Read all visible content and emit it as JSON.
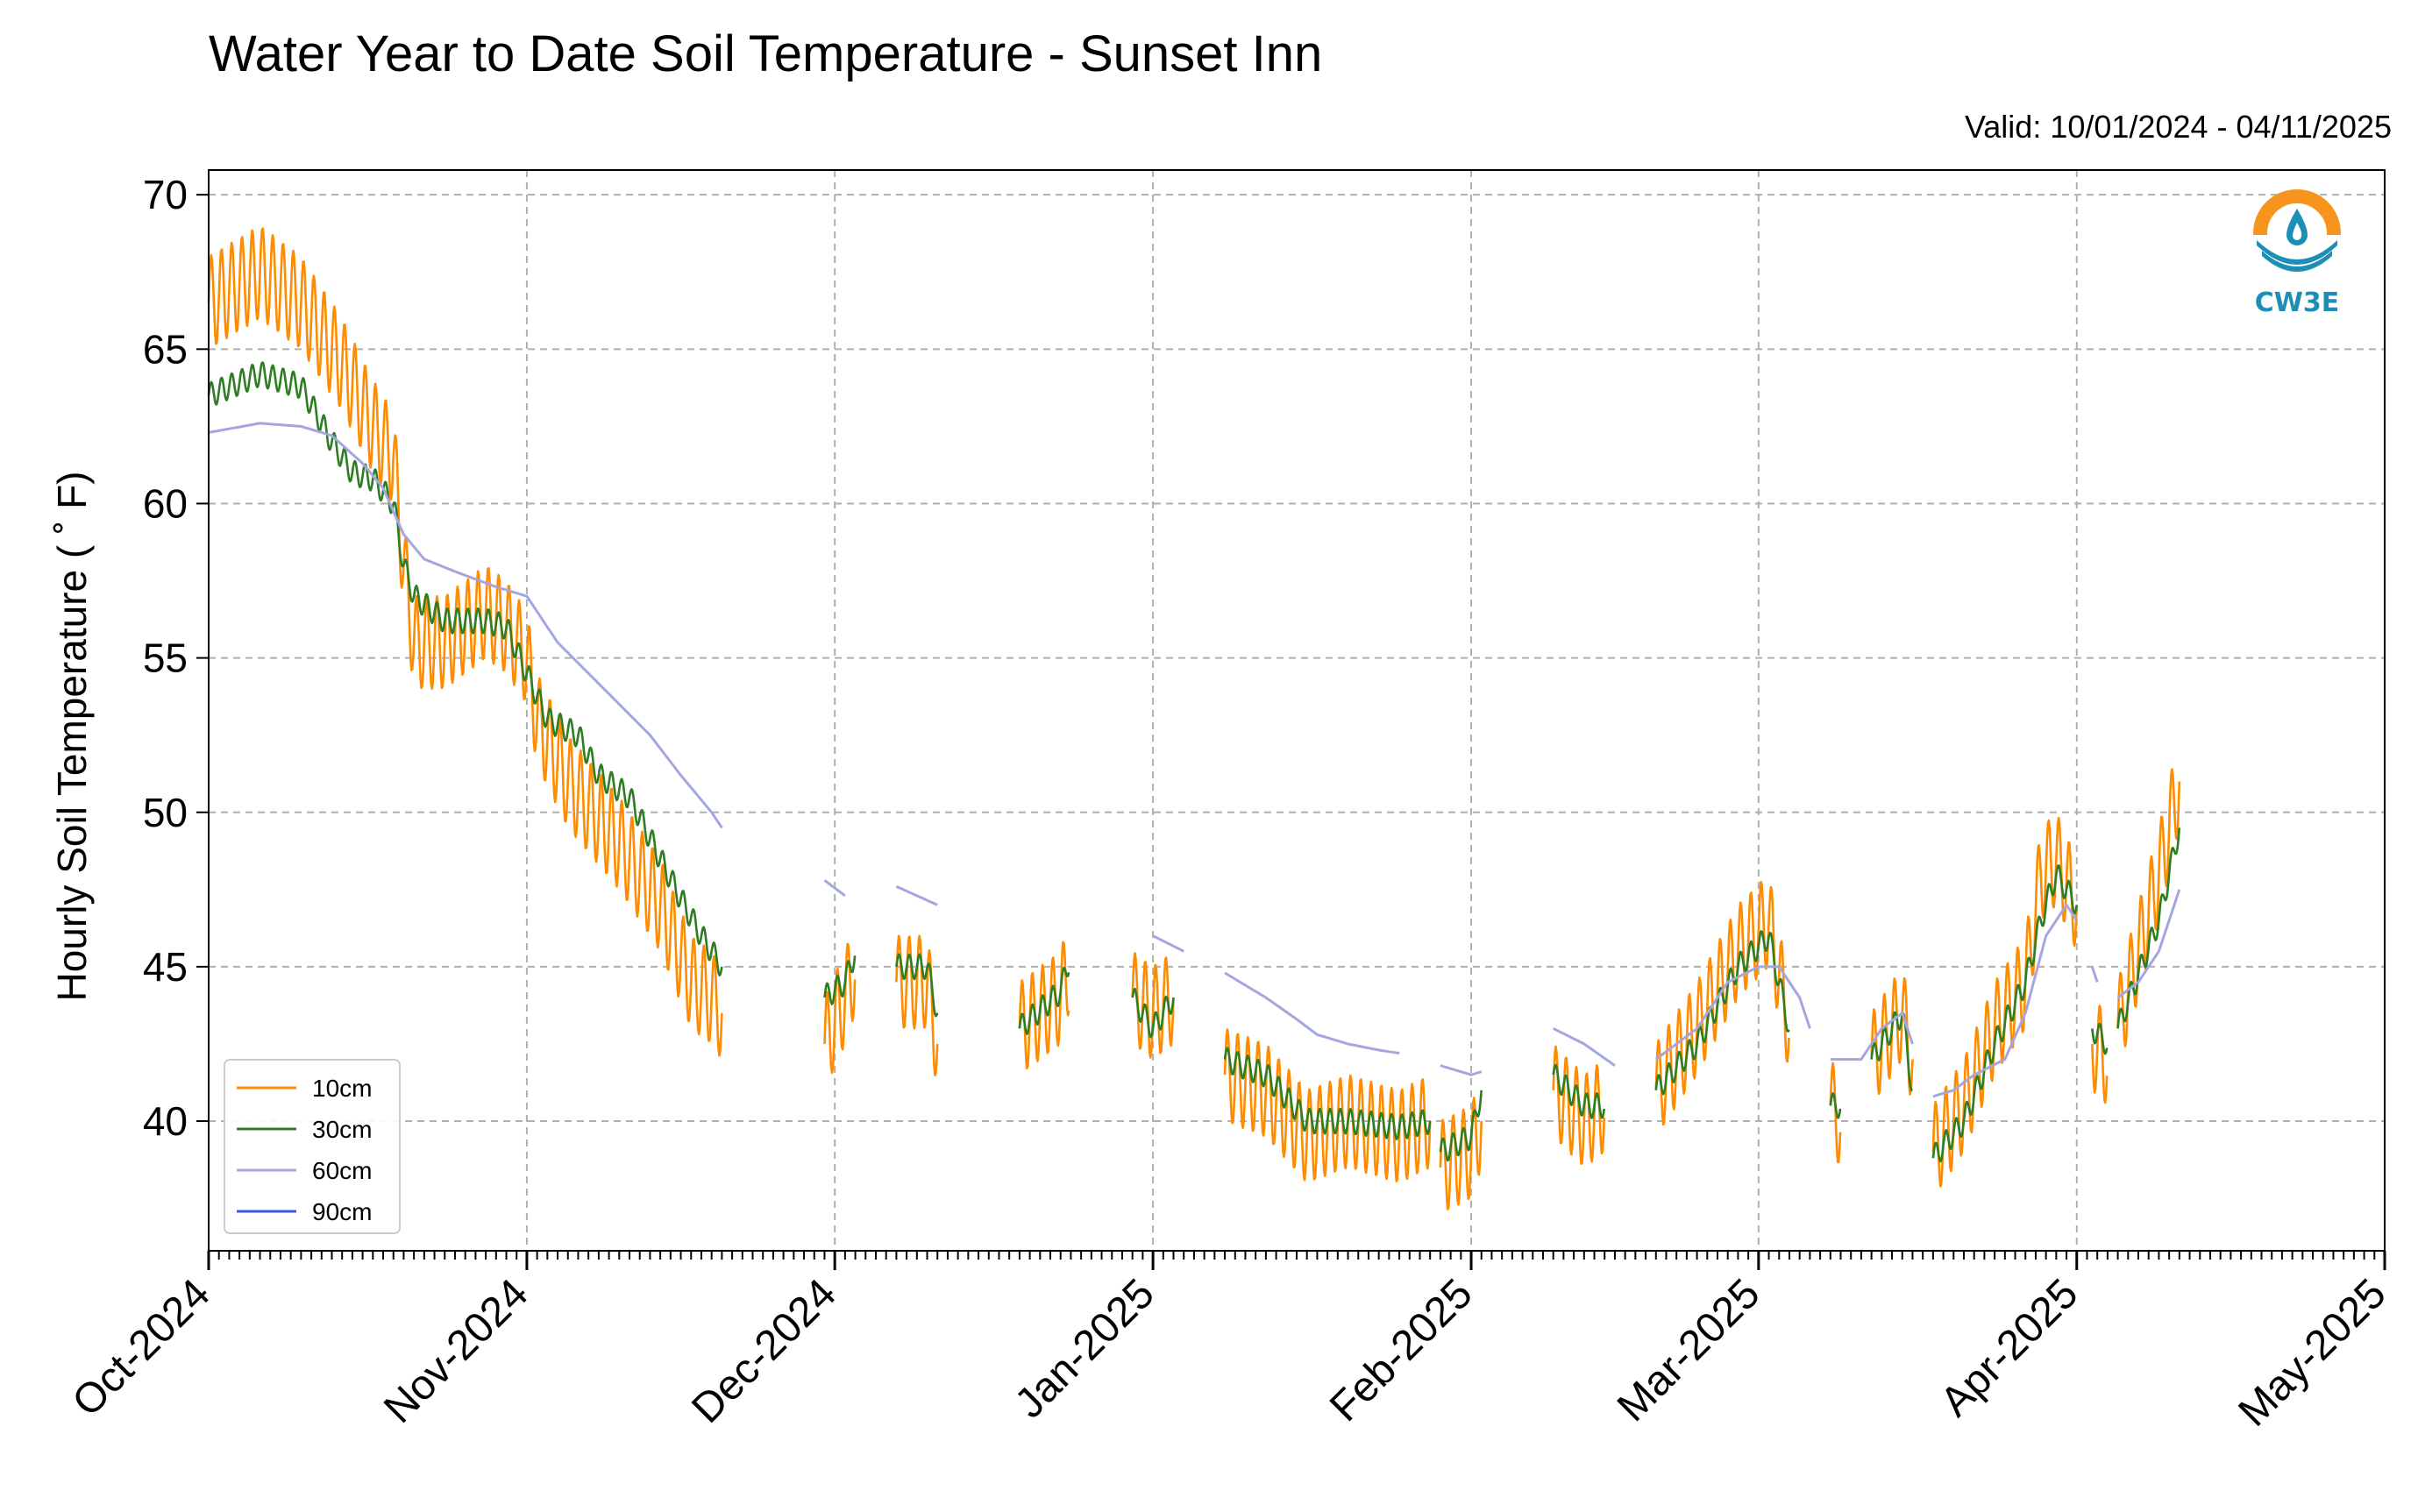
{
  "chart_data": {
    "type": "line",
    "title": "Water Year to Date Soil Temperature - Sunset Inn",
    "subtitle": "Valid: 10/01/2024 - 04/11/2025",
    "ylabel": "Hourly Soil Temperature ( ˚ F)",
    "xlabel": "",
    "ylim": [
      35.8,
      70.8
    ],
    "xlim_days": [
      0,
      212
    ],
    "yticks": [
      40,
      45,
      50,
      55,
      60,
      65,
      70
    ],
    "xticks": [
      {
        "label": "Oct-2024",
        "day": 0
      },
      {
        "label": "Nov-2024",
        "day": 31
      },
      {
        "label": "Dec-2024",
        "day": 61
      },
      {
        "label": "Jan-2025",
        "day": 92
      },
      {
        "label": "Feb-2025",
        "day": 123
      },
      {
        "label": "Mar-2025",
        "day": 151
      },
      {
        "label": "Apr-2025",
        "day": 182
      },
      {
        "label": "May-2025",
        "day": 212
      }
    ],
    "grid": true,
    "legend_position": "lower-left",
    "series": [
      {
        "name": "10cm",
        "color": "#ff8c00",
        "swing": 3.0,
        "segments": [
          [
            [
              0,
              66.5
            ],
            [
              5,
              67.5
            ],
            [
              9,
              66.5
            ],
            [
              13,
              64.5
            ],
            [
              16,
              62.5
            ],
            [
              18,
              61.5
            ],
            [
              19,
              58
            ],
            [
              20,
              55.5
            ],
            [
              23,
              55.5
            ],
            [
              27,
              56.5
            ],
            [
              29,
              56
            ],
            [
              31,
              55
            ],
            [
              32,
              53
            ],
            [
              35,
              51
            ],
            [
              40,
              49
            ],
            [
              44,
              47
            ],
            [
              47,
              44.5
            ],
            [
              49,
              44
            ],
            [
              50,
              43.5
            ]
          ],
          [
            [
              60,
              42.5
            ],
            [
              62,
              44
            ],
            [
              63,
              45
            ]
          ],
          [
            [
              67,
              44.5
            ],
            [
              70,
              44.5
            ],
            [
              71,
              42.5
            ]
          ],
          [
            [
              79,
              43
            ],
            [
              83,
              44
            ],
            [
              83.8,
              45
            ]
          ],
          [
            [
              90,
              44
            ],
            [
              92,
              43.5
            ],
            [
              94,
              44
            ]
          ],
          [
            [
              99,
              41.5
            ],
            [
              103,
              41
            ],
            [
              107,
              39.5
            ],
            [
              111,
              40
            ],
            [
              116,
              39.5
            ],
            [
              119,
              40
            ]
          ],
          [
            [
              120,
              38.5
            ],
            [
              123,
              39
            ],
            [
              124,
              40
            ]
          ],
          [
            [
              131,
              41
            ],
            [
              134,
              40
            ],
            [
              136,
              40.5
            ]
          ],
          [
            [
              141,
              41
            ],
            [
              145,
              43
            ],
            [
              149,
              45.5
            ],
            [
              152,
              46.5
            ],
            [
              154,
              43
            ]
          ],
          [
            [
              158,
              40.5
            ],
            [
              159,
              40
            ]
          ],
          [
            [
              162,
              42
            ],
            [
              165,
              43.5
            ],
            [
              166,
              42
            ]
          ],
          [
            [
              168,
              39
            ],
            [
              171,
              40.5
            ],
            [
              174,
              43
            ],
            [
              177,
              44.5
            ],
            [
              178.5,
              48
            ],
            [
              180,
              48.5
            ],
            [
              182,
              47
            ]
          ],
          [
            [
              183.5,
              42.5
            ],
            [
              185,
              42
            ]
          ],
          [
            [
              186,
              43
            ],
            [
              190,
              48
            ],
            [
              192,
              51
            ]
          ]
        ]
      },
      {
        "name": "30cm",
        "color": "#2e7d23",
        "swing": 0.8,
        "segments": [
          [
            [
              0,
              63.5
            ],
            [
              5,
              64.2
            ],
            [
              9,
              63.8
            ],
            [
              12,
              62
            ],
            [
              14,
              61
            ],
            [
              16,
              60.8
            ],
            [
              18,
              60
            ],
            [
              19,
              58
            ],
            [
              20,
              57
            ],
            [
              23,
              56.2
            ],
            [
              27,
              56.2
            ],
            [
              29,
              56
            ],
            [
              31,
              54.5
            ],
            [
              33,
              53
            ],
            [
              36,
              52.5
            ],
            [
              38,
              51.2
            ],
            [
              41,
              50.5
            ],
            [
              44,
              48.5
            ],
            [
              46,
              47.2
            ],
            [
              48,
              46
            ],
            [
              49,
              45.5
            ],
            [
              50,
              45
            ]
          ],
          [
            [
              60,
              44
            ],
            [
              62,
              44.5
            ],
            [
              63,
              45.5
            ]
          ],
          [
            [
              67,
              45
            ],
            [
              70,
              45
            ],
            [
              71,
              43.5
            ]
          ],
          [
            [
              79,
              43
            ],
            [
              83,
              44.2
            ],
            [
              83.8,
              45.2
            ]
          ],
          [
            [
              90,
              44
            ],
            [
              92,
              43
            ],
            [
              94,
              44
            ]
          ],
          [
            [
              99,
              42
            ],
            [
              103,
              41.5
            ],
            [
              107,
              40
            ],
            [
              111,
              40
            ],
            [
              116,
              39.8
            ],
            [
              119,
              40
            ]
          ],
          [
            [
              120,
              39
            ],
            [
              123,
              39.5
            ],
            [
              124,
              41
            ]
          ],
          [
            [
              131,
              41.5
            ],
            [
              134,
              40.5
            ],
            [
              136,
              40.5
            ]
          ],
          [
            [
              141,
              41
            ],
            [
              145,
              42.5
            ],
            [
              149,
              45
            ],
            [
              152,
              46
            ],
            [
              154,
              43
            ]
          ],
          [
            [
              158,
              40.5
            ],
            [
              159,
              40.5
            ]
          ],
          [
            [
              162,
              42
            ],
            [
              165,
              43.5
            ],
            [
              166,
              41
            ]
          ],
          [
            [
              168,
              38.8
            ],
            [
              171,
              40
            ],
            [
              174,
              42.5
            ],
            [
              177,
              44.5
            ],
            [
              178.5,
              46.5
            ],
            [
              180,
              48
            ],
            [
              182,
              47
            ]
          ],
          [
            [
              183.5,
              43
            ],
            [
              185,
              42.5
            ]
          ],
          [
            [
              186,
              43
            ],
            [
              190,
              46.5
            ],
            [
              192,
              49.5
            ]
          ]
        ]
      },
      {
        "name": "60cm",
        "color": "#a3a6e0",
        "swing": 0,
        "segments": [
          [
            [
              0,
              62.3
            ],
            [
              5,
              62.6
            ],
            [
              9,
              62.5
            ],
            [
              12,
              62.2
            ],
            [
              15,
              61.3
            ],
            [
              17,
              60.5
            ],
            [
              19,
              59
            ],
            [
              21,
              58.2
            ],
            [
              24,
              57.8
            ],
            [
              28,
              57.3
            ],
            [
              31,
              57
            ],
            [
              34,
              55.5
            ],
            [
              37,
              54.5
            ],
            [
              40,
              53.5
            ],
            [
              43,
              52.5
            ],
            [
              46,
              51.2
            ],
            [
              49,
              50
            ],
            [
              50,
              49.5
            ]
          ],
          [
            [
              60,
              47.8
            ],
            [
              62,
              47.3
            ]
          ],
          [
            [
              67,
              47.6
            ],
            [
              71,
              47
            ]
          ],
          [
            [
              92,
              46
            ],
            [
              95,
              45.5
            ]
          ],
          [
            [
              99,
              44.8
            ],
            [
              103,
              44
            ],
            [
              106,
              43.3
            ],
            [
              108,
              42.8
            ],
            [
              111,
              42.5
            ],
            [
              114,
              42.3
            ],
            [
              116,
              42.2
            ]
          ],
          [
            [
              120,
              41.8
            ],
            [
              123,
              41.5
            ],
            [
              124,
              41.6
            ]
          ],
          [
            [
              131,
              43
            ],
            [
              134,
              42.5
            ],
            [
              137,
              41.8
            ]
          ],
          [
            [
              141,
              42
            ],
            [
              145,
              43
            ],
            [
              148,
              44.5
            ],
            [
              151,
              45
            ],
            [
              153,
              45
            ],
            [
              155,
              44
            ],
            [
              156,
              43
            ]
          ],
          [
            [
              158,
              42
            ],
            [
              161,
              42
            ],
            [
              163,
              43
            ],
            [
              165,
              43.5
            ],
            [
              166,
              42.5
            ]
          ],
          [
            [
              168,
              40.8
            ],
            [
              170,
              41
            ],
            [
              172,
              41.5
            ],
            [
              175,
              42
            ],
            [
              177,
              43.5
            ],
            [
              179,
              46
            ],
            [
              181,
              47
            ],
            [
              182,
              46.5
            ]
          ],
          [
            [
              183.5,
              45
            ],
            [
              184,
              44.5
            ]
          ],
          [
            [
              186,
              44
            ],
            [
              188,
              44.5
            ],
            [
              190,
              45.5
            ],
            [
              192,
              47.5
            ]
          ]
        ]
      },
      {
        "name": "90cm",
        "color": "#3b5cd6",
        "swing": 0,
        "segments": []
      }
    ]
  },
  "logo": {
    "text": "CW3E",
    "colors": {
      "orange": "#f7941d",
      "blue": "#1d8fb6"
    }
  }
}
